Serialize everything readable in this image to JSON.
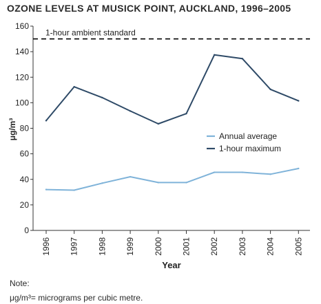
{
  "chart_data": {
    "type": "line",
    "title": "OZONE LEVELS AT MUSICK POINT, AUCKLAND, 1996–2005",
    "xlabel": "Year",
    "ylabel": "μg/m³",
    "categories": [
      "1996",
      "1997",
      "1998",
      "1999",
      "2000",
      "2001",
      "2002",
      "2003",
      "2004",
      "2005"
    ],
    "ylim": [
      0,
      160
    ],
    "yticks": [
      0,
      20,
      40,
      60,
      80,
      100,
      120,
      140,
      160
    ],
    "grid": false,
    "legend_position": "right",
    "series": [
      {
        "name": "Annual average",
        "color": "#7fb3d9",
        "values": [
          32,
          31.5,
          37,
          42,
          37.5,
          37.5,
          45.5,
          45.5,
          44,
          48.5
        ]
      },
      {
        "name": "1-hour maximum",
        "color": "#2e4a67",
        "values": [
          86,
          112.5,
          104,
          93.5,
          83.5,
          91.5,
          137.5,
          134.5,
          110.5,
          101.5
        ]
      }
    ],
    "reference_line": {
      "label": "1-hour ambient standard",
      "value": 150,
      "style": "dashed",
      "color": "#000000"
    }
  },
  "note": {
    "label": "Note:",
    "text": "μg/m³= micrograms per cubic metre."
  }
}
